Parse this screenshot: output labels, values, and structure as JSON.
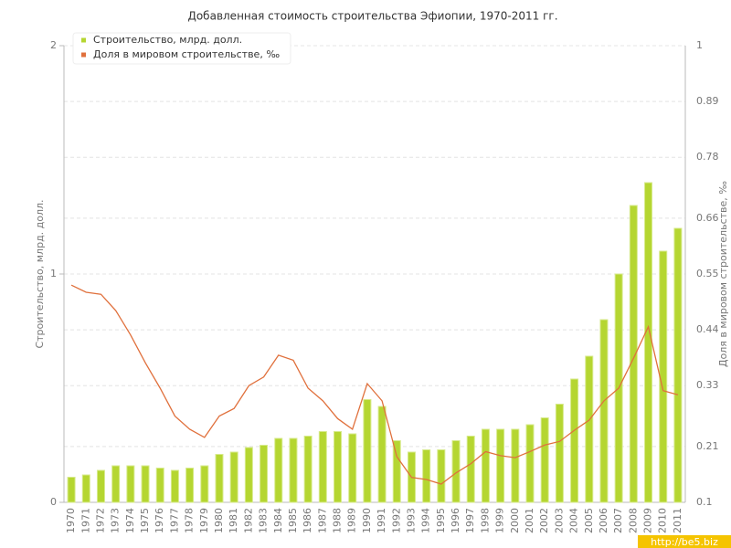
{
  "chart_data": {
    "type": "bar-line",
    "title": "Добавленная стоимость строительства Эфиопии, 1970-2011 гг.",
    "y_label": "Строительство, млрд. долл.",
    "y2_label": "Доля в мировом строительстве, ‰",
    "watermark": "http://be5.biz",
    "categories": [
      "1970",
      "1971",
      "1972",
      "1973",
      "1974",
      "1975",
      "1976",
      "1977",
      "1978",
      "1979",
      "1980",
      "1981",
      "1982",
      "1983",
      "1984",
      "1985",
      "1986",
      "1987",
      "1988",
      "1989",
      "1990",
      "1991",
      "1992",
      "1993",
      "1994",
      "1995",
      "1996",
      "1997",
      "1998",
      "1999",
      "2000",
      "2001",
      "2002",
      "2003",
      "2004",
      "2005",
      "2006",
      "2007",
      "2008",
      "2009",
      "2010",
      "2011"
    ],
    "series": [
      {
        "name": "Строительство, млрд. долл.",
        "color": "#b5d631",
        "type": "bar",
        "values": [
          0.11,
          0.12,
          0.14,
          0.16,
          0.16,
          0.16,
          0.15,
          0.14,
          0.15,
          0.16,
          0.21,
          0.22,
          0.24,
          0.25,
          0.28,
          0.28,
          0.29,
          0.31,
          0.31,
          0.3,
          0.45,
          0.42,
          0.27,
          0.22,
          0.23,
          0.23,
          0.27,
          0.29,
          0.32,
          0.32,
          0.32,
          0.34,
          0.37,
          0.43,
          0.54,
          0.64,
          0.8,
          1.0,
          1.3,
          1.4,
          1.1,
          1.2
        ]
      },
      {
        "name": "Доля в мировом строительстве, ‰",
        "color": "#e0703c",
        "type": "line",
        "axis": "y2",
        "values": [
          0.528,
          0.514,
          0.51,
          0.478,
          0.43,
          0.375,
          0.325,
          0.27,
          0.244,
          0.228,
          0.27,
          0.285,
          0.33,
          0.347,
          0.39,
          0.38,
          0.325,
          0.3,
          0.265,
          0.244,
          0.334,
          0.3,
          0.19,
          0.149,
          0.145,
          0.136,
          0.158,
          0.176,
          0.2,
          0.192,
          0.188,
          0.2,
          0.213,
          0.22,
          0.242,
          0.262,
          0.3,
          0.325,
          0.384,
          0.446,
          0.32,
          0.312
        ]
      }
    ],
    "ylim": [
      0,
      2
    ],
    "yticks": [
      0,
      1,
      2
    ],
    "y2lim": [
      0.1,
      1
    ],
    "y2ticks": [
      0.1,
      0.21,
      0.33,
      0.44,
      0.55,
      0.66,
      0.78,
      0.89,
      1
    ],
    "grid": true,
    "legend": "top-left"
  }
}
